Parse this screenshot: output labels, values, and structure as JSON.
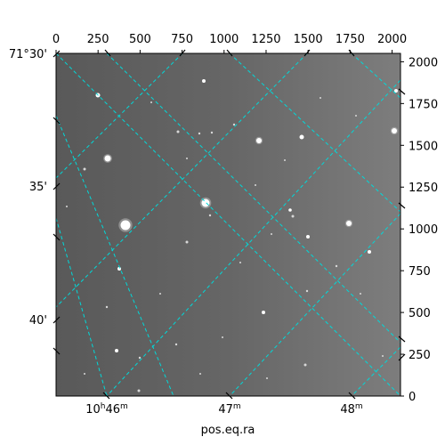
{
  "figure": {
    "x_pixel_axis": {
      "ticks": [
        "0",
        "250",
        "500",
        "750",
        "1000",
        "1250",
        "1500",
        "1750",
        "2000"
      ],
      "range": [
        0,
        2050
      ]
    },
    "y_pixel_axis": {
      "ticks": [
        "0",
        "250",
        "500",
        "750",
        "1000",
        "1250",
        "1500",
        "1750",
        "2000"
      ],
      "range": [
        0,
        2050
      ]
    },
    "ra_axis": {
      "label": "pos.eq.ra",
      "ticks": [
        {
          "main": "10",
          "sup1": "h",
          "mid": "46",
          "sup2": "m"
        },
        {
          "main": "47",
          "sup2": "m"
        },
        {
          "main": "48",
          "sup2": "m"
        }
      ]
    },
    "dec_axis": {
      "ticks": [
        "71°30'",
        "35'",
        "40'"
      ]
    },
    "image": {
      "description_colors": {
        "background": "#6a6a6a",
        "grid": "#00d9d9"
      },
      "colormap": "gray"
    }
  }
}
